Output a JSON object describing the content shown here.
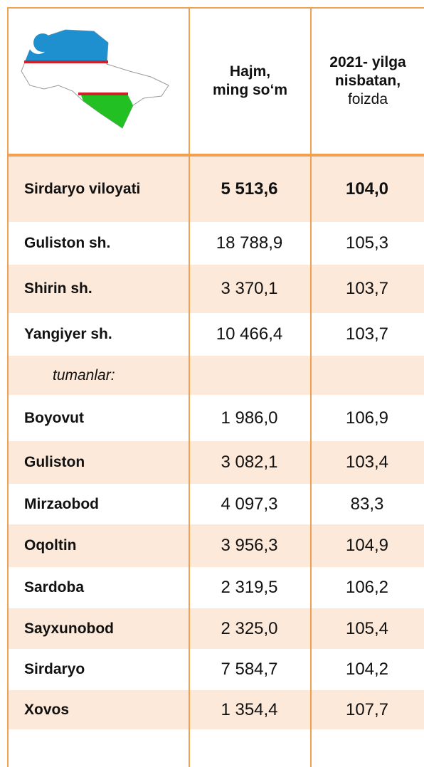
{
  "header": {
    "columns": [
      {
        "lines": [
          "Hajm,",
          "ming so‘m"
        ]
      },
      {
        "lines": [
          "2021- yilga",
          "nisbatan,",
          "foizda"
        ]
      }
    ]
  },
  "table": {
    "rows": [
      [
        "Sirdaryo viloyati",
        "5 513,6",
        "104,0"
      ],
      [
        "Guliston  sh.",
        "18 788,9",
        "105,3"
      ],
      [
        "Shirin sh.",
        "3 370,1",
        "103,7"
      ],
      [
        "Yangiyer  sh.",
        "10 466,4",
        "103,7"
      ],
      [
        "tumanlar:"
      ],
      [
        "Boyovut",
        "1 986,0",
        "106,9"
      ],
      [
        "Guliston",
        "3 082,1",
        "103,4"
      ],
      [
        "Mirzaobod",
        "4 097,3",
        "83,3"
      ],
      [
        "Oqoltin",
        "3 956,3",
        "104,9"
      ],
      [
        "Sardoba",
        "2 319,5",
        "106,2"
      ],
      [
        "Sayxunobod",
        "2 325,0",
        "105,4"
      ],
      [
        "Sirdaryo",
        "7 584,7",
        "104,2"
      ],
      [
        "Xovos",
        "1 354,4",
        "107,7"
      ]
    ]
  }
}
